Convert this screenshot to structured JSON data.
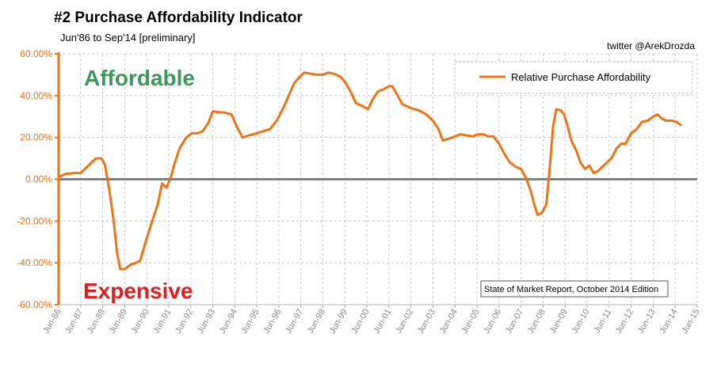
{
  "chart_data": {
    "type": "line",
    "title": "#2 Purchase Affordability Indicator",
    "subtitle": "Jun'86 to Sep'14 [preliminary]",
    "credit": "twitter @ArekDrozda",
    "source_note": "State of Market Report, October 2014 Edition",
    "annotations": {
      "top": "Affordable",
      "bottom": "Expensive"
    },
    "ylim": [
      -60,
      60
    ],
    "yticks": [
      60,
      40,
      20,
      0,
      -20,
      -40,
      -60
    ],
    "ytick_labels": [
      "60.00%",
      "40.00%",
      "20.00%",
      "0.00%",
      "-20.00%",
      "-40.00%",
      "-60.00%"
    ],
    "xlim": [
      1986.5,
      2015.5
    ],
    "xticks": [
      1986.5,
      1987.5,
      1988.5,
      1989.5,
      1990.5,
      1991.5,
      1992.5,
      1993.5,
      1994.5,
      1995.5,
      1996.5,
      1997.5,
      1998.5,
      1999.5,
      2000.5,
      2001.5,
      2002.5,
      2003.5,
      2004.5,
      2005.5,
      2006.5,
      2007.5,
      2008.5,
      2009.5,
      2010.5,
      2011.5,
      2012.5,
      2013.5,
      2014.5,
      2015.5
    ],
    "xtick_labels": [
      "Jun-86",
      "Jun-87",
      "Jun-88",
      "Jun-89",
      "Jun-90",
      "Jun-91",
      "Jun-92",
      "Jun-93",
      "Jun-94",
      "Jun-95",
      "Jun-96",
      "Jun-97",
      "Jun-98",
      "Jun-99",
      "Jun-00",
      "Jun-01",
      "Jun-02",
      "Jun-03",
      "Jun-04",
      "Jun-05",
      "Jun-06",
      "Jun-07",
      "Jun-08",
      "Jun-09",
      "Jun-10",
      "Jun-11",
      "Jun-12",
      "Jun-13",
      "Jun-14",
      "Jun-15"
    ],
    "grid": true,
    "legend_position": "top-right",
    "colors": {
      "series": "#f07314",
      "axis": "#f07314",
      "zero_line": "#808080",
      "grid": "#c8c8c8"
    },
    "series": [
      {
        "name": "Relative Purchase Affordability",
        "points": [
          [
            1986.5,
            1
          ],
          [
            1986.8,
            2.5
          ],
          [
            1987.2,
            3
          ],
          [
            1987.5,
            3
          ],
          [
            1987.9,
            7
          ],
          [
            1988.2,
            10
          ],
          [
            1988.45,
            10
          ],
          [
            1988.6,
            7
          ],
          [
            1988.8,
            -5
          ],
          [
            1989.0,
            -20
          ],
          [
            1989.15,
            -35
          ],
          [
            1989.3,
            -43
          ],
          [
            1989.5,
            -43
          ],
          [
            1989.75,
            -41
          ],
          [
            1990.0,
            -40
          ],
          [
            1990.2,
            -39
          ],
          [
            1990.45,
            -30
          ],
          [
            1990.75,
            -20
          ],
          [
            1991.0,
            -12
          ],
          [
            1991.2,
            -2
          ],
          [
            1991.4,
            -4
          ],
          [
            1991.6,
            1
          ],
          [
            1991.75,
            7
          ],
          [
            1992.0,
            15
          ],
          [
            1992.3,
            20
          ],
          [
            1992.55,
            22
          ],
          [
            1992.8,
            22
          ],
          [
            1993.05,
            23
          ],
          [
            1993.3,
            27
          ],
          [
            1993.5,
            32.5
          ],
          [
            1993.8,
            32
          ],
          [
            1994.0,
            32
          ],
          [
            1994.35,
            31
          ],
          [
            1994.6,
            25
          ],
          [
            1994.85,
            20
          ],
          [
            1995.15,
            21
          ],
          [
            1995.5,
            22
          ],
          [
            1995.8,
            23
          ],
          [
            1996.1,
            24
          ],
          [
            1996.4,
            28
          ],
          [
            1996.7,
            34
          ],
          [
            1996.95,
            40
          ],
          [
            1997.2,
            46
          ],
          [
            1997.45,
            49
          ],
          [
            1997.65,
            51
          ],
          [
            1997.95,
            50.5
          ],
          [
            1998.2,
            50
          ],
          [
            1998.5,
            50
          ],
          [
            1998.75,
            51
          ],
          [
            1999.0,
            50.5
          ],
          [
            1999.3,
            49
          ],
          [
            1999.55,
            46
          ],
          [
            1999.8,
            41
          ],
          [
            2000.0,
            36.5
          ],
          [
            2000.3,
            35
          ],
          [
            2000.55,
            33.5
          ],
          [
            2000.75,
            38
          ],
          [
            2001.0,
            42
          ],
          [
            2001.25,
            43
          ],
          [
            2001.5,
            44.5
          ],
          [
            2001.65,
            44.5
          ],
          [
            2001.9,
            40
          ],
          [
            2002.1,
            36
          ],
          [
            2002.5,
            34
          ],
          [
            2002.85,
            33
          ],
          [
            2003.2,
            31
          ],
          [
            2003.5,
            28
          ],
          [
            2003.75,
            24
          ],
          [
            2003.95,
            18.5
          ],
          [
            2004.25,
            19.5
          ],
          [
            2004.5,
            20.5
          ],
          [
            2004.75,
            21.5
          ],
          [
            2005.0,
            21
          ],
          [
            2005.3,
            20.5
          ],
          [
            2005.55,
            21.5
          ],
          [
            2005.8,
            21.5
          ],
          [
            2006.0,
            20.5
          ],
          [
            2006.25,
            20.5
          ],
          [
            2006.5,
            17
          ],
          [
            2006.75,
            12
          ],
          [
            2007.0,
            8
          ],
          [
            2007.25,
            6
          ],
          [
            2007.5,
            5
          ],
          [
            2007.75,
            0
          ],
          [
            2007.95,
            -6
          ],
          [
            2008.1,
            -12
          ],
          [
            2008.25,
            -17
          ],
          [
            2008.45,
            -16
          ],
          [
            2008.65,
            -12
          ],
          [
            2008.8,
            5
          ],
          [
            2008.95,
            25
          ],
          [
            2009.1,
            33.5
          ],
          [
            2009.3,
            33
          ],
          [
            2009.45,
            31
          ],
          [
            2009.6,
            26
          ],
          [
            2009.8,
            18
          ],
          [
            2010.0,
            14
          ],
          [
            2010.2,
            8
          ],
          [
            2010.4,
            5
          ],
          [
            2010.6,
            6.5
          ],
          [
            2010.8,
            3
          ],
          [
            2011.0,
            4
          ],
          [
            2011.3,
            7
          ],
          [
            2011.6,
            10
          ],
          [
            2011.85,
            15
          ],
          [
            2012.05,
            17
          ],
          [
            2012.25,
            17
          ],
          [
            2012.5,
            22
          ],
          [
            2012.75,
            24
          ],
          [
            2013.0,
            27.5
          ],
          [
            2013.25,
            28
          ],
          [
            2013.5,
            30
          ],
          [
            2013.7,
            31
          ],
          [
            2013.9,
            29
          ],
          [
            2014.1,
            28
          ],
          [
            2014.35,
            28
          ],
          [
            2014.55,
            27.5
          ],
          [
            2014.75,
            26
          ]
        ]
      }
    ]
  }
}
